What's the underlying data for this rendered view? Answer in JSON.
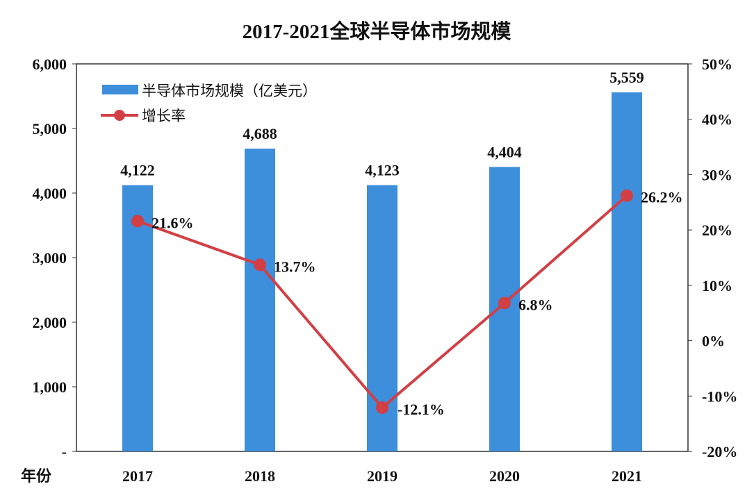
{
  "chart_data": {
    "type": "bar+line",
    "title": "2017-2021全球半导体市场规模",
    "xlabel": "年份",
    "categories": [
      "2017",
      "2018",
      "2019",
      "2020",
      "2021"
    ],
    "series": [
      {
        "name": "半导体市场规模（亿美元）",
        "type": "bar",
        "axis": "left",
        "color": "#3d8edb",
        "values": [
          4122,
          4688,
          4123,
          4404,
          5559
        ],
        "labels": [
          "4,122",
          "4,688",
          "4,123",
          "4,404",
          "5,559"
        ]
      },
      {
        "name": "增长率",
        "type": "line",
        "axis": "right",
        "color": "#d23f45",
        "values": [
          21.6,
          13.7,
          -12.1,
          6.8,
          26.2
        ],
        "labels": [
          "21.6%",
          "13.7%",
          "-12.1%",
          "6.8%",
          "26.2%"
        ]
      }
    ],
    "y_left": {
      "range": [
        0,
        6000
      ],
      "ticks": [
        0,
        1000,
        2000,
        3000,
        4000,
        5000,
        6000
      ],
      "tick_labels": [
        "-",
        "1,000",
        "2,000",
        "3,000",
        "4,000",
        "5,000",
        "6,000"
      ]
    },
    "y_right": {
      "range": [
        -20,
        50
      ],
      "ticks": [
        -20,
        -10,
        0,
        10,
        20,
        30,
        40,
        50
      ],
      "tick_labels": [
        "-20%",
        "-10%",
        "0%",
        "10%",
        "20%",
        "30%",
        "40%",
        "50%"
      ]
    },
    "grid": false,
    "legend": "top-left"
  }
}
